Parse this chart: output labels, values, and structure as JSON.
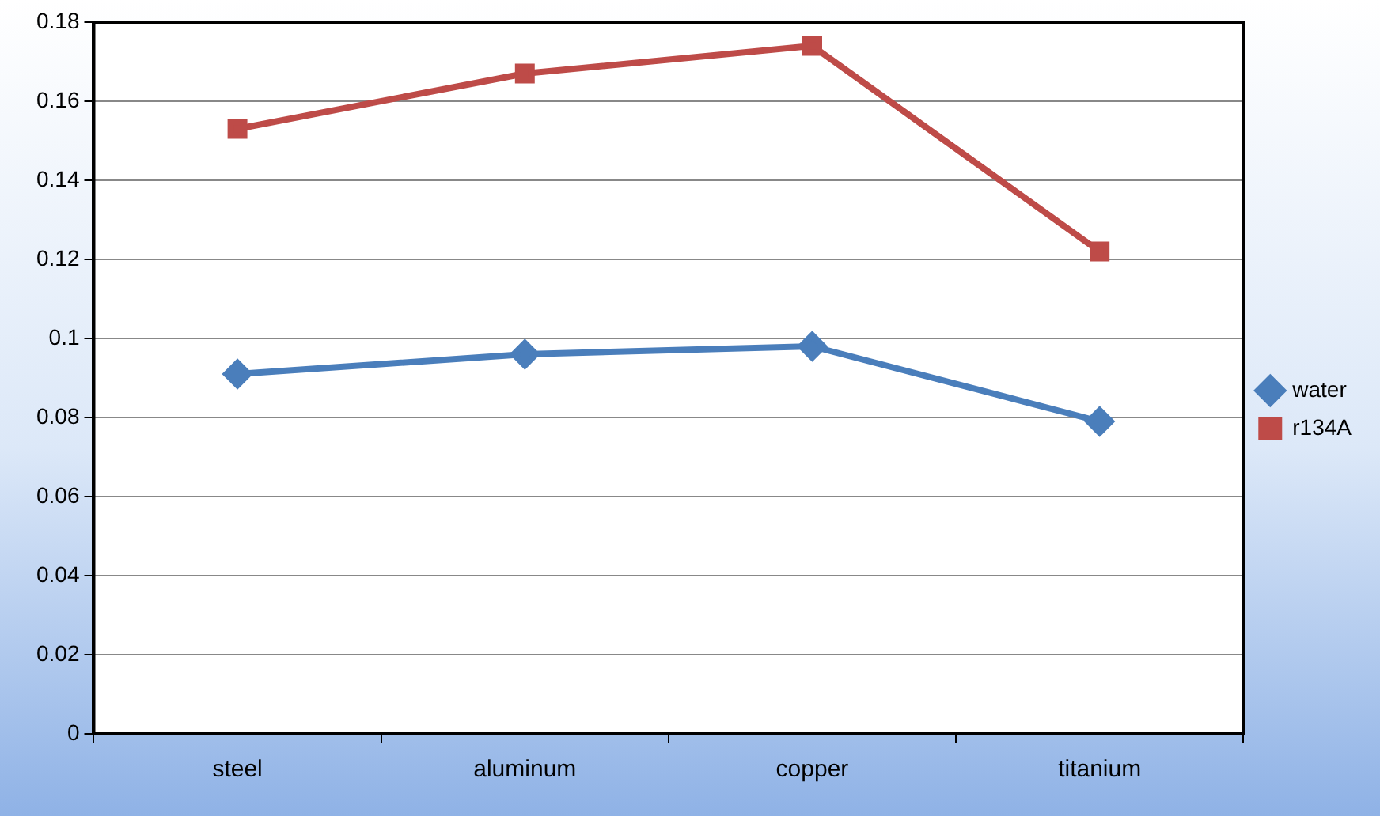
{
  "chart_data": {
    "type": "line",
    "categories": [
      "steel",
      "aluminum",
      "copper",
      "titanium"
    ],
    "series": [
      {
        "name": "water",
        "color": "#4a7ebb",
        "marker": "diamond",
        "values": [
          0.091,
          0.096,
          0.098,
          0.079
        ]
      },
      {
        "name": "r134A",
        "color": "#be4b48",
        "marker": "square",
        "values": [
          0.153,
          0.167,
          0.174,
          0.122
        ]
      }
    ],
    "ylim": [
      0,
      0.18
    ],
    "yticks": [
      0,
      0.02,
      0.04,
      0.06,
      0.08,
      0.1,
      0.12,
      0.14,
      0.16,
      0.18
    ],
    "grid": "y",
    "legend": "right"
  }
}
